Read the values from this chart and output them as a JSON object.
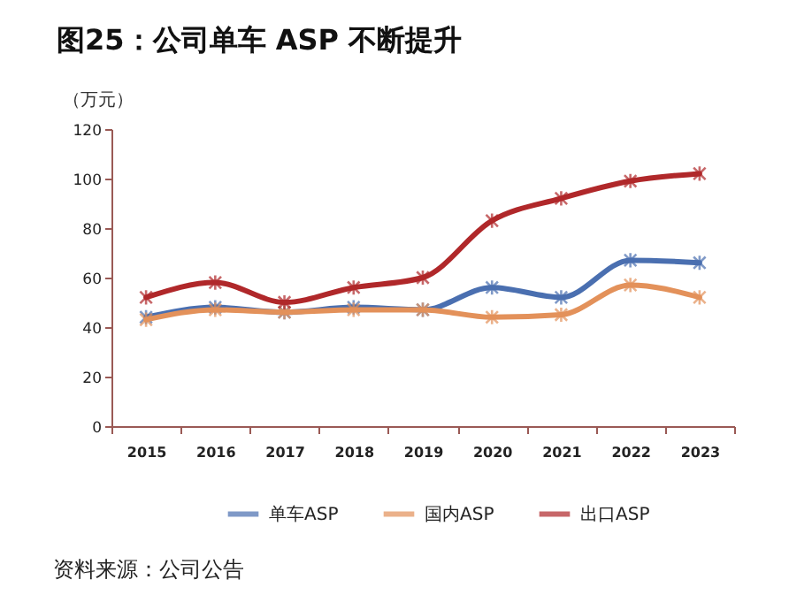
{
  "chart_data": {
    "type": "line",
    "title": "图25：公司单车 ASP 不断提升",
    "ylabel": "（万元）",
    "categories": [
      "2015",
      "2016",
      "2017",
      "2018",
      "2019",
      "2020",
      "2021",
      "2022",
      "2023"
    ],
    "series": [
      {
        "name": "单车ASP",
        "color": "#4a6fb0",
        "values": [
          44,
          48,
          46,
          48,
          47,
          56,
          52,
          67,
          66
        ]
      },
      {
        "name": "国内ASP",
        "color": "#e3915a",
        "values": [
          43,
          47,
          46,
          47,
          47,
          44,
          45,
          57,
          52
        ]
      },
      {
        "name": "出口ASP",
        "color": "#b0282a",
        "values": [
          52,
          58,
          50,
          56,
          60,
          83,
          92,
          99,
          102
        ]
      }
    ],
    "ylim": [
      0,
      120
    ],
    "yticks": [
      0,
      20,
      40,
      60,
      80,
      100,
      120
    ],
    "legend": "bottom",
    "marker": "cross",
    "line_style": "solid",
    "annotations": [
      "资料来源：公司公告"
    ]
  }
}
